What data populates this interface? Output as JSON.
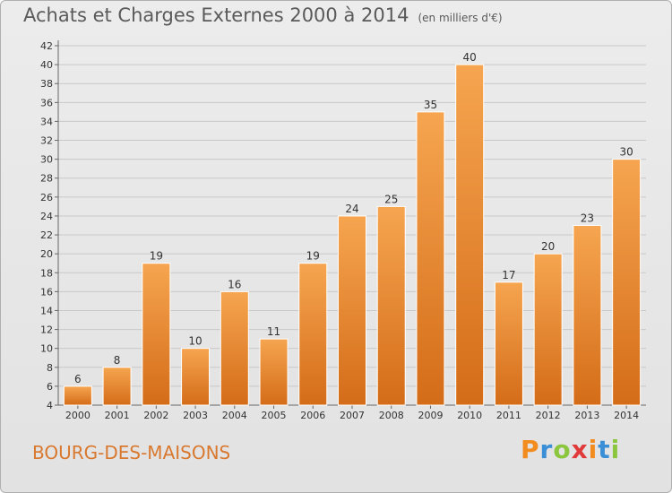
{
  "header": {
    "title": "Achats et Charges Externes 2000 à 2014",
    "unit": "(en milliers d'€)"
  },
  "footer": {
    "commune": "BOURG-DES-MAISONS",
    "logo": "Proxiti"
  },
  "colors": {
    "bar_light": "#f6a24f",
    "bar_dark": "#d9701c",
    "commune_text": "#d9792f",
    "logo_letters": [
      "#f28c1e",
      "#3b8fd6",
      "#8cc63f",
      "#e03a3a",
      "#f28c1e",
      "#3b8fd6",
      "#8cc63f"
    ]
  },
  "chart_data": {
    "type": "bar",
    "categories": [
      "2000",
      "2001",
      "2002",
      "2003",
      "2004",
      "2005",
      "2006",
      "2007",
      "2008",
      "2009",
      "2010",
      "2011",
      "2012",
      "2013",
      "2014"
    ],
    "values": [
      6,
      8,
      19,
      10,
      16,
      11,
      19,
      24,
      25,
      35,
      40,
      17,
      20,
      23,
      30
    ],
    "title": "Achats et Charges Externes 2000 à 2014",
    "xlabel": "",
    "ylabel": "",
    "ylim": [
      4,
      42
    ],
    "yticks": [
      4,
      6,
      8,
      10,
      12,
      14,
      16,
      18,
      20,
      22,
      24,
      26,
      28,
      30,
      32,
      34,
      36,
      38,
      40,
      42
    ],
    "grid": true
  }
}
